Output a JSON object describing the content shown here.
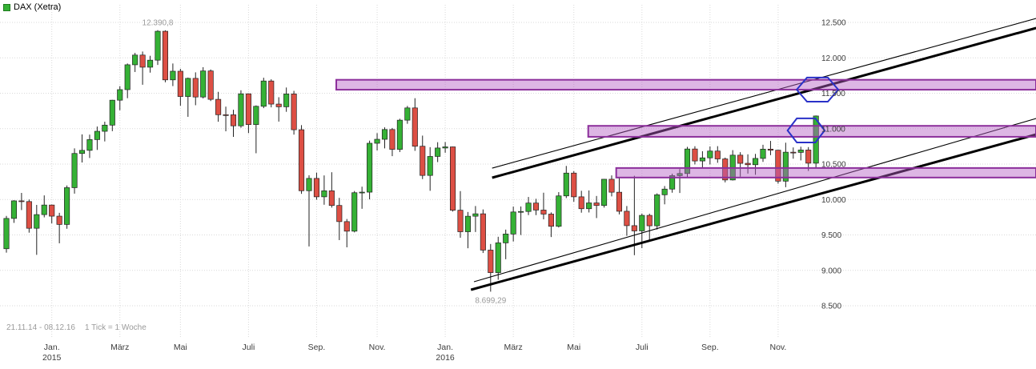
{
  "chart_data": {
    "type": "candlestick",
    "title": "DAX (Xetra)",
    "period": "21.11.14 - 08.12.16",
    "interval": "1 Tick = 1 Woche",
    "y_axis": {
      "range": [
        8500,
        12500
      ],
      "ticks": [
        {
          "value": 12500,
          "label": "12.500"
        },
        {
          "value": 12000,
          "label": "12.000"
        },
        {
          "value": 11500,
          "label": "11.500"
        },
        {
          "value": 11000,
          "label": "11.000"
        },
        {
          "value": 10500,
          "label": "10.500"
        },
        {
          "value": 10000,
          "label": "10.000"
        },
        {
          "value": 9500,
          "label": "9.500"
        },
        {
          "value": 9000,
          "label": "9.000"
        },
        {
          "value": 8500,
          "label": "8.500"
        }
      ]
    },
    "x_axis": {
      "months": [
        {
          "label": "Jan.",
          "week": 6,
          "year": "2015"
        },
        {
          "label": "März",
          "week": 15
        },
        {
          "label": "Mai",
          "week": 23
        },
        {
          "label": "Juli",
          "week": 32
        },
        {
          "label": "Sep.",
          "week": 41
        },
        {
          "label": "Nov.",
          "week": 49
        },
        {
          "label": "Jan.",
          "week": 58,
          "year": "2016"
        },
        {
          "label": "März",
          "week": 67
        },
        {
          "label": "Mai",
          "week": 75
        },
        {
          "label": "Juli",
          "week": 84
        },
        {
          "label": "Sep.",
          "week": 93
        },
        {
          "label": "Nov.",
          "week": 102
        }
      ]
    },
    "high_label": {
      "text": "12.390,8",
      "week": 20,
      "price": 12391
    },
    "low_label": {
      "text": "8.699,29",
      "week": 64,
      "price": 8699
    },
    "candles": [
      [
        9305,
        9769,
        9250,
        9733
      ],
      [
        9733,
        9990,
        9670,
        9981
      ],
      [
        9981,
        10093,
        9851,
        9971
      ],
      [
        9971,
        10000,
        9532,
        9594
      ],
      [
        9594,
        9924,
        9219,
        9787
      ],
      [
        9787,
        10058,
        9748,
        9922
      ],
      [
        9922,
        9928,
        9663,
        9765
      ],
      [
        9765,
        9812,
        9382,
        9648
      ],
      [
        9648,
        10198,
        9587,
        10167
      ],
      [
        10167,
        10722,
        10083,
        10650
      ],
      [
        10650,
        10920,
        10522,
        10694
      ],
      [
        10694,
        10916,
        10586,
        10846
      ],
      [
        10846,
        11030,
        10700,
        10963
      ],
      [
        10963,
        11098,
        10820,
        11050
      ],
      [
        11050,
        11407,
        10965,
        11402
      ],
      [
        11402,
        11600,
        11260,
        11551
      ],
      [
        11551,
        11920,
        11430,
        11902
      ],
      [
        11902,
        12070,
        11800,
        12039
      ],
      [
        12039,
        12089,
        11620,
        11868
      ],
      [
        11868,
        12029,
        11791,
        11967
      ],
      [
        11967,
        12391,
        11900,
        12375
      ],
      [
        12375,
        12389,
        11655,
        11689
      ],
      [
        11689,
        11920,
        11601,
        11811
      ],
      [
        11811,
        11845,
        11324,
        11454
      ],
      [
        11454,
        11721,
        11167,
        11710
      ],
      [
        11710,
        11795,
        11331,
        11447
      ],
      [
        11447,
        11868,
        11427,
        11815
      ],
      [
        11815,
        11836,
        11390,
        11414
      ],
      [
        11414,
        11520,
        11098,
        11197
      ],
      [
        11197,
        11311,
        10963,
        11196
      ],
      [
        11196,
        11267,
        10884,
        11040
      ],
      [
        11040,
        11542,
        11013,
        11492
      ],
      [
        11492,
        11497,
        10937,
        11058
      ],
      [
        11058,
        11328,
        10653,
        11316
      ],
      [
        11316,
        11719,
        11290,
        11673
      ],
      [
        11673,
        11697,
        11301,
        11347
      ],
      [
        11347,
        11444,
        11100,
        11309
      ],
      [
        11309,
        11581,
        11238,
        11490
      ],
      [
        11490,
        11534,
        10916,
        10985
      ],
      [
        10985,
        11050,
        10080,
        10124
      ],
      [
        10124,
        10342,
        9338,
        10298
      ],
      [
        10298,
        10380,
        9997,
        10038
      ],
      [
        10038,
        10340,
        9926,
        10123
      ],
      [
        10123,
        10385,
        9886,
        9916
      ],
      [
        9916,
        10023,
        9427,
        9688
      ],
      [
        9688,
        9725,
        9325,
        9553
      ],
      [
        9553,
        10120,
        9536,
        10096
      ],
      [
        10096,
        10181,
        9869,
        10104
      ],
      [
        10104,
        10831,
        10002,
        10794
      ],
      [
        10794,
        10937,
        10692,
        10850
      ],
      [
        10850,
        11018,
        10722,
        10988
      ],
      [
        10988,
        11010,
        10612,
        10708
      ],
      [
        10708,
        11140,
        10670,
        11120
      ],
      [
        11120,
        11321,
        11069,
        11293
      ],
      [
        11293,
        11430,
        10687,
        10752
      ],
      [
        10752,
        10902,
        10288,
        10340
      ],
      [
        10340,
        10739,
        10123,
        10608
      ],
      [
        10608,
        10809,
        10528,
        10727
      ],
      [
        10727,
        10811,
        10660,
        10743
      ],
      [
        10743,
        10748,
        9830,
        9849
      ],
      [
        9849,
        10119,
        9461,
        9545
      ],
      [
        9545,
        9824,
        9312,
        9764
      ],
      [
        9764,
        9908,
        9541,
        9798
      ],
      [
        9798,
        9860,
        9245,
        9286
      ],
      [
        9286,
        9372,
        8699,
        8968
      ],
      [
        8968,
        9474,
        8868,
        9388
      ],
      [
        9388,
        9575,
        9157,
        9513
      ],
      [
        9513,
        9900,
        9407,
        9824
      ],
      [
        9824,
        9902,
        9499,
        9831
      ],
      [
        9831,
        10036,
        9780,
        9950
      ],
      [
        9950,
        10010,
        9780,
        9851
      ],
      [
        9851,
        10096,
        9720,
        9794
      ],
      [
        9794,
        9818,
        9470,
        9622
      ],
      [
        9622,
        10104,
        9605,
        10051
      ],
      [
        10051,
        10474,
        10020,
        10373
      ],
      [
        10373,
        10400,
        9968,
        10038
      ],
      [
        10038,
        10123,
        9814,
        9870
      ],
      [
        9870,
        10128,
        9817,
        9952
      ],
      [
        9952,
        10050,
        9738,
        9916
      ],
      [
        9916,
        10290,
        9886,
        10286
      ],
      [
        10286,
        10341,
        10044,
        10103
      ],
      [
        10103,
        10316,
        9790,
        9834
      ],
      [
        9834,
        9908,
        9487,
        9631
      ],
      [
        9631,
        10335,
        9214,
        9557
      ],
      [
        9557,
        9802,
        9313,
        9776
      ],
      [
        9776,
        9800,
        9418,
        9629
      ],
      [
        9629,
        10087,
        9576,
        10067
      ],
      [
        10067,
        10190,
        9932,
        10147
      ],
      [
        10147,
        10365,
        10096,
        10337
      ],
      [
        10337,
        10430,
        10092,
        10367
      ],
      [
        10367,
        10743,
        10316,
        10713
      ],
      [
        10713,
        10752,
        10495,
        10544
      ],
      [
        10544,
        10682,
        10439,
        10588
      ],
      [
        10588,
        10749,
        10494,
        10684
      ],
      [
        10684,
        10753,
        10518,
        10573
      ],
      [
        10573,
        10592,
        10242,
        10276
      ],
      [
        10276,
        10697,
        10268,
        10626
      ],
      [
        10626,
        10668,
        10322,
        10511
      ],
      [
        10511,
        10638,
        10366,
        10491
      ],
      [
        10491,
        10644,
        10349,
        10580
      ],
      [
        10580,
        10772,
        10531,
        10711
      ],
      [
        10711,
        10827,
        10626,
        10696
      ],
      [
        10696,
        10700,
        10224,
        10259
      ],
      [
        10259,
        10802,
        10174,
        10668
      ],
      [
        10668,
        10735,
        10576,
        10665
      ],
      [
        10665,
        10745,
        10552,
        10699
      ],
      [
        10699,
        10740,
        10403,
        10513
      ],
      [
        10513,
        11186,
        10440,
        11179
      ]
    ],
    "zones": [
      {
        "start_week": 43.6,
        "price_top": 11690,
        "price_bottom": 11550
      },
      {
        "start_week": 76.9,
        "price_top": 11040,
        "price_bottom": 10885
      },
      {
        "start_week": 80.6,
        "price_top": 10445,
        "price_bottom": 10310
      }
    ],
    "trendlines": [
      {
        "style": "thick",
        "from": {
          "week": 61.4,
          "price": 8726
        },
        "to": {
          "week": 136.1,
          "price": 10918
        }
      },
      {
        "style": "thick",
        "from": {
          "week": 64.2,
          "price": 10308
        },
        "to": {
          "week": 136.1,
          "price": 12421
        }
      },
      {
        "style": "thin",
        "from": {
          "week": 61.8,
          "price": 8839
        },
        "to": {
          "week": 136.1,
          "price": 11144
        }
      },
      {
        "style": "thin",
        "from": {
          "week": 64.2,
          "price": 10443
        },
        "to": {
          "week": 136.1,
          "price": 12556
        }
      }
    ],
    "hexagons": [
      {
        "center_week": 107.2,
        "center_price": 11551,
        "half_width_weeks": 2.75,
        "half_height_points": 170
      },
      {
        "center_week": 105.7,
        "center_price": 10975,
        "half_width_weeks": 2.45,
        "half_height_points": 170
      }
    ]
  },
  "colors": {
    "bull": "#35b135",
    "bear": "#dd4f44",
    "wick": "#222222",
    "grid": "#d9d9d9",
    "zone_fill": "#b45ec4",
    "zone_stroke": "#8c2f9b",
    "trend": "#000000",
    "hexagon": "#2a31c8",
    "axis_text": "#3c3c3c",
    "extreme_text": "#9a9a9a",
    "footer_text": "#9a9a9a"
  }
}
